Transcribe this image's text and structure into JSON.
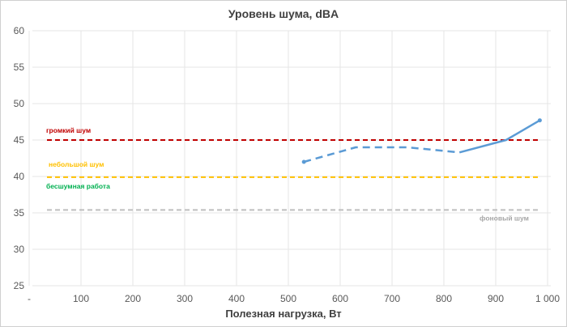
{
  "chart_data": {
    "type": "line",
    "title": "Уровень шума, dBA",
    "xlabel": "Полезная нагрузка, Вт",
    "ylabel": "",
    "xlim": [
      0,
      1000
    ],
    "ylim": [
      25,
      60
    ],
    "x_ticks": [
      "-",
      "100",
      "200",
      "300",
      "400",
      "500",
      "600",
      "700",
      "800",
      "900",
      "1 000"
    ],
    "y_ticks": [
      "25",
      "30",
      "35",
      "40",
      "45",
      "50",
      "55",
      "60"
    ],
    "grid": true,
    "series": [
      {
        "name": "",
        "color": "#5b9bd5",
        "dashed_segment": [
          [
            530,
            42.0
          ],
          [
            630,
            44.0
          ],
          [
            730,
            44.0
          ],
          [
            830,
            43.3
          ]
        ],
        "solid_segment": [
          [
            830,
            43.3
          ],
          [
            920,
            45.0
          ],
          [
            985,
            47.7
          ]
        ]
      }
    ],
    "reference_lines": [
      {
        "label": "громкий шум",
        "value": 45.0,
        "color": "#c00000"
      },
      {
        "label": "небольшой шум",
        "value": 39.9,
        "color": "#ffc000"
      },
      {
        "label": "",
        "value": 35.4,
        "color": "#bfbfbf"
      }
    ],
    "annotations": [
      {
        "text": "бесшумная работа",
        "color": "#00b050"
      },
      {
        "text": "фоновый шум",
        "color": "#a6a6a6"
      }
    ]
  }
}
